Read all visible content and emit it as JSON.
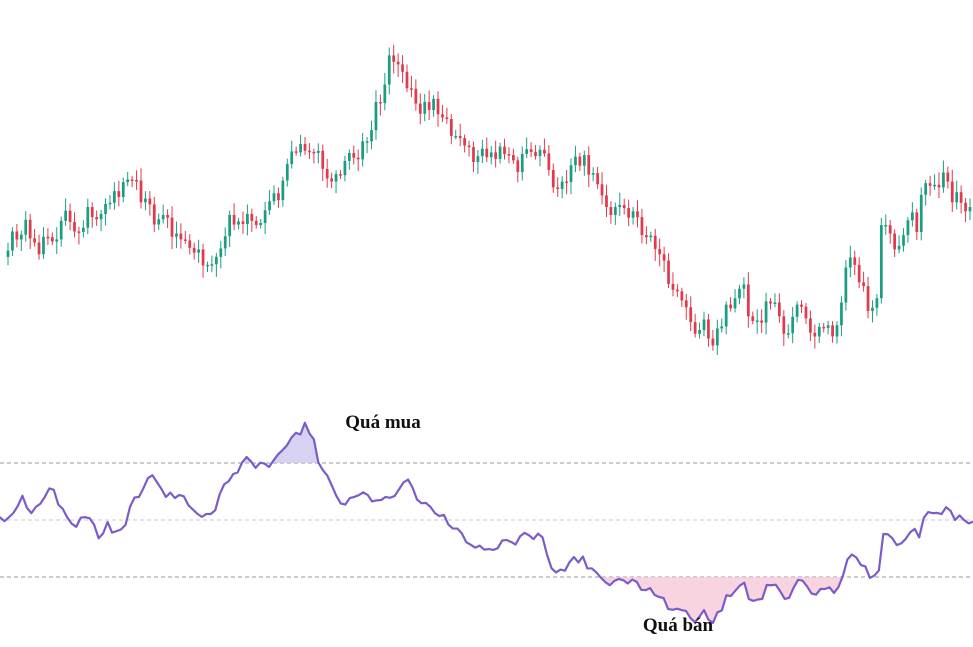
{
  "colors": {
    "up": "#1a9e82",
    "down": "#e23a4c",
    "rsi_line": "#7b5cc9",
    "overbought_fill": "#c9c2ee",
    "oversold_fill": "#f6c6d6",
    "background": "#ffffff"
  },
  "annotations": {
    "overbought_label": "Quá mua",
    "oversold_label": "Quá bán"
  },
  "chart_data": [
    {
      "type": "candlestick",
      "title": "",
      "xlabel": "",
      "ylabel": "",
      "ylim": [
        12,
        78
      ],
      "grid": false,
      "legend": "none",
      "close_series": [
        38.3,
        41.9,
        40.4,
        41.3,
        44.1,
        40.6,
        39.8,
        37.6,
        40.9,
        40.8,
        40.0,
        40.4,
        43.9,
        45.8,
        43.7,
        41.9,
        41.8,
        42.6,
        46.5,
        44.6,
        44.2,
        45.2,
        47.1,
        47.3,
        49.5,
        48.4,
        51.2,
        51.7,
        51.6,
        51.5,
        47.4,
        48.1,
        47.0,
        43.2,
        44.2,
        45.0,
        44.5,
        40.9,
        41.5,
        40.4,
        40.2,
        38.8,
        37.9,
        38.5,
        35.5,
        35.6,
        35.7,
        37.1,
        38.7,
        41.0,
        45.0,
        43.2,
        43.8,
        43.3,
        45.2,
        43.9,
        43.1,
        43.5,
        45.9,
        47.6,
        49.1,
        47.8,
        51.5,
        54.6,
        57.0,
        56.8,
        58.4,
        57.1,
        56.9,
        56.7,
        57.1,
        53.7,
        51.9,
        51.3,
        52.7,
        52.5,
        55.2,
        56.7,
        55.8,
        55.5,
        58.9,
        58.9,
        61.0,
        66.3,
        66.1,
        69.6,
        75.1,
        73.9,
        73.4,
        72.0,
        68.9,
        68.8,
        66.0,
        64.1,
        66.3,
        64.8,
        66.9,
        64.0,
        63.4,
        63.1,
        59.9,
        59.9,
        59.5,
        58.1,
        57.8,
        55.0,
        56.1,
        57.5,
        55.9,
        56.8,
        55.6,
        57.9,
        56.5,
        56.3,
        55.3,
        53.1,
        56.5,
        57.4,
        56.9,
        56.1,
        57.3,
        56.6,
        53.5,
        50.2,
        49.9,
        51.3,
        51.2,
        54.4,
        56.0,
        54.3,
        56.3,
        52.6,
        52.9,
        50.8,
        48.7,
        46.5,
        45.0,
        46.5,
        46.9,
        46.3,
        44.5,
        45.7,
        44.6,
        41.2,
        40.8,
        41.1,
        38.6,
        37.6,
        36.4,
        32.0,
        30.9,
        30.6,
        28.9,
        27.6,
        24.8,
        22.6,
        23.3,
        25.3,
        21.7,
        20.4,
        23.6,
        24.0,
        28.1,
        27.4,
        29.3,
        31.1,
        31.9,
        25.9,
        25.0,
        25.1,
        24.7,
        28.7,
        28.3,
        28.5,
        25.9,
        22.6,
        22.7,
        25.8,
        28.1,
        27.7,
        25.5,
        22.8,
        22.1,
        23.9,
        23.7,
        24.2,
        22.1,
        24.2,
        28.5,
        35.1,
        37.0,
        35.6,
        32.3,
        31.6,
        26.9,
        27.5,
        29.3,
        43.1,
        43.1,
        41.5,
        38.5,
        39.2,
        41.2,
        44.0,
        45.5,
        41.8,
        48.8,
        51.0,
        50.5,
        50.7,
        50.2,
        53.0,
        51.3,
        47.4,
        49.3,
        47.3,
        45.7,
        46.5
      ]
    },
    {
      "type": "line",
      "title": "",
      "xlabel": "",
      "ylabel": "",
      "ylim": [
        10,
        84
      ],
      "levels": [
        70,
        30
      ],
      "midline": 50,
      "grid": false,
      "legend": "none",
      "values": [
        50.9,
        49.6,
        51.0,
        52.5,
        55.0,
        58.5,
        54.3,
        52.4,
        54.6,
        55.7,
        58.1,
        61.1,
        60.6,
        55.4,
        53.9,
        50.9,
        48.7,
        47.6,
        50.8,
        51.0,
        50.6,
        48.3,
        43.6,
        45.3,
        49.3,
        45.6,
        46.1,
        46.7,
        48.3,
        54.6,
        57.9,
        58.1,
        61.2,
        64.7,
        65.7,
        63.3,
        60.9,
        58.1,
        59.6,
        57.7,
        58.8,
        58.3,
        55.2,
        53.7,
        52.2,
        51.1,
        52.1,
        52.1,
        53.4,
        59.1,
        62.5,
        63.6,
        66.1,
        66.7,
        70.2,
        72.1,
        70.5,
        68.3,
        70.1,
        69.8,
        68.6,
        70.9,
        73.0,
        74.5,
        76.2,
        78.9,
        80.6,
        80.0,
        84.1,
        80.4,
        78.3,
        70.2,
        67.5,
        65.6,
        62.1,
        58.5,
        55.8,
        55.4,
        57.7,
        58.1,
        58.7,
        59.7,
        58.8,
        56.5,
        56.9,
        57.0,
        58.1,
        57.8,
        58.4,
        60.8,
        63.2,
        64.2,
        61.4,
        57.2,
        55.9,
        56.0,
        54.6,
        52.4,
        51.4,
        51.8,
        48.4,
        47.0,
        47.0,
        45.3,
        42.2,
        41.3,
        40.3,
        41.0,
        39.6,
        39.8,
        39.5,
        40.1,
        42.8,
        43.0,
        42.3,
        41.4,
        44.3,
        45.5,
        44.6,
        43.3,
        45.2,
        43.9,
        37.8,
        33.1,
        31.6,
        32.6,
        32.2,
        35.2,
        37.0,
        35.1,
        37.2,
        33.0,
        33.0,
        31.6,
        29.8,
        28.2,
        27.1,
        28.6,
        29.3,
        28.9,
        27.7,
        29.1,
        28.3,
        25.5,
        25.4,
        26.1,
        23.7,
        23.0,
        22.6,
        18.8,
        18.5,
        18.9,
        18.4,
        18.1,
        15.6,
        14.1,
        16.1,
        18.4,
        15.0,
        13.9,
        17.6,
        18.3,
        23.6,
        23.3,
        25.2,
        27.0,
        28.0,
        22.3,
        21.6,
        22.1,
        22.3,
        27.2,
        27.1,
        27.3,
        25.0,
        22.3,
        22.7,
        26.3,
        29.0,
        28.7,
        26.7,
        24.2,
        23.8,
        25.8,
        25.8,
        26.4,
        24.4,
        26.5,
        30.5,
        36.2,
        37.9,
        36.8,
        34.2,
        33.7,
        29.7,
        30.5,
        32.3,
        45.1,
        45.0,
        43.6,
        41.2,
        41.8,
        43.4,
        45.7,
        46.9,
        43.9,
        50.7,
        52.8,
        52.4,
        52.5,
        52.1,
        54.5,
        53.2,
        50.0,
        51.6,
        50.0,
        48.8,
        49.4
      ]
    }
  ]
}
